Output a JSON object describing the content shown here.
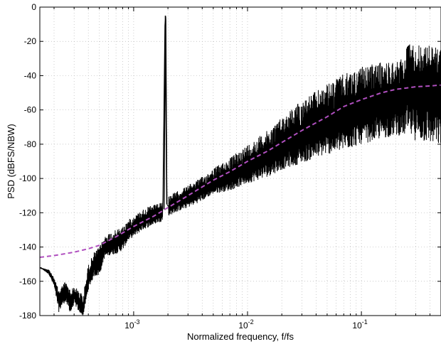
{
  "chart_data": {
    "type": "line",
    "title": "",
    "xlabel": "Normalized frequency, f/fs",
    "ylabel": "PSD (dBFS/NBW)",
    "x_scale": "log",
    "xlim": [
      0.00015,
      0.5
    ],
    "ylim": [
      -180,
      0
    ],
    "x_ticks": [
      {
        "value": 0.001,
        "base": "10",
        "exp": "-3"
      },
      {
        "value": 0.01,
        "base": "10",
        "exp": "-2"
      },
      {
        "value": 0.1,
        "base": "10",
        "exp": "-1"
      }
    ],
    "y_ticks": [
      0,
      -20,
      -40,
      -60,
      -80,
      -100,
      -120,
      -140,
      -160,
      -180
    ],
    "grid": "dotted, major and minor",
    "legend": "none",
    "series": [
      {
        "kind": "measured-psd",
        "color": "#000000",
        "style": "solid",
        "x": [
          0.00015,
          0.00018,
          0.0002,
          0.00022,
          0.00025,
          0.00028,
          0.0003,
          0.00033,
          0.00036,
          0.0004,
          0.00045,
          0.0005,
          0.00055,
          0.0006,
          0.0007,
          0.0008,
          0.0009,
          0.001,
          0.0012,
          0.0014,
          0.0016,
          0.0018,
          0.00188,
          0.00192,
          0.00196,
          0.002,
          0.0025,
          0.003,
          0.004,
          0.005,
          0.007,
          0.01,
          0.015,
          0.02,
          0.03,
          0.05,
          0.07,
          0.1,
          0.15,
          0.2,
          0.24,
          0.25,
          0.3,
          0.4,
          0.5
        ],
        "y": [
          -152,
          -154,
          -160,
          -170,
          -165,
          -172,
          -168,
          -172,
          -178,
          -158,
          -150,
          -148,
          -140,
          -138,
          -137,
          -135,
          -130,
          -128,
          -124,
          -122,
          -120,
          -119,
          -10,
          -5,
          -115,
          -116,
          -113,
          -110,
          -106,
          -102,
          -98,
          -92,
          -85,
          -80,
          -73,
          -66,
          -61,
          -57,
          -53,
          -51,
          -50,
          -40,
          -42,
          -44,
          -45
        ],
        "band_top": [
          -152,
          -153,
          -158,
          -165,
          -160,
          -165,
          -163,
          -165,
          -168,
          -150,
          -143,
          -140,
          -134,
          -132,
          -130,
          -128,
          -124,
          -122,
          -118,
          -116,
          -115,
          -114,
          -6,
          -5,
          -110,
          -110,
          -107,
          -104,
          -99,
          -94,
          -88,
          -80,
          -72,
          -64,
          -54,
          -45,
          -39,
          -35,
          -32,
          -31,
          -30,
          -20,
          -22,
          -22,
          -24
        ],
        "band_bottom": [
          -152,
          -156,
          -163,
          -178,
          -172,
          -179,
          -173,
          -178,
          -180,
          -165,
          -157,
          -157,
          -147,
          -145,
          -144,
          -142,
          -136,
          -134,
          -130,
          -128,
          -126,
          -125,
          -120,
          -118,
          -121,
          -122,
          -119,
          -117,
          -113,
          -109,
          -107,
          -103,
          -99,
          -95,
          -91,
          -86,
          -84,
          -80,
          -77,
          -75,
          -75,
          -75,
          -78,
          -80,
          -82
        ]
      },
      {
        "kind": "theoretical-ntf",
        "color": "#b04fbf",
        "style": "dashed",
        "x": [
          0.00015,
          0.0002,
          0.0003,
          0.0004,
          0.0005,
          0.0007,
          0.001,
          0.0015,
          0.002,
          0.003,
          0.005,
          0.007,
          0.01,
          0.015,
          0.02,
          0.03,
          0.05,
          0.07,
          0.1,
          0.15,
          0.2,
          0.3,
          0.4,
          0.5
        ],
        "y": [
          -146,
          -145,
          -143,
          -141,
          -139,
          -134,
          -128,
          -122,
          -117,
          -110,
          -101,
          -96,
          -90,
          -84,
          -79,
          -72,
          -64,
          -58,
          -54,
          -50,
          -48,
          -46.5,
          -46,
          -45.5
        ]
      }
    ]
  }
}
